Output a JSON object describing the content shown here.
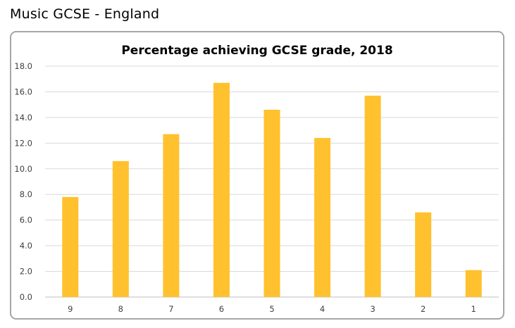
{
  "header": {
    "title": "Music GCSE - England"
  },
  "chart_data": {
    "type": "bar",
    "title": "Percentage achieving GCSE grade, 2018",
    "xlabel": "",
    "ylabel": "",
    "categories": [
      "9",
      "8",
      "7",
      "6",
      "5",
      "4",
      "3",
      "2",
      "1"
    ],
    "values": [
      7.8,
      10.6,
      12.7,
      16.7,
      14.6,
      12.4,
      15.7,
      6.6,
      2.1
    ],
    "ylim": [
      0,
      18
    ],
    "yticks": [
      "0.0",
      "2.0",
      "4.0",
      "6.0",
      "8.0",
      "10.0",
      "12.0",
      "14.0",
      "16.0",
      "18.0"
    ],
    "bar_color": "#FFC12E",
    "grid": true,
    "legend": "none"
  }
}
